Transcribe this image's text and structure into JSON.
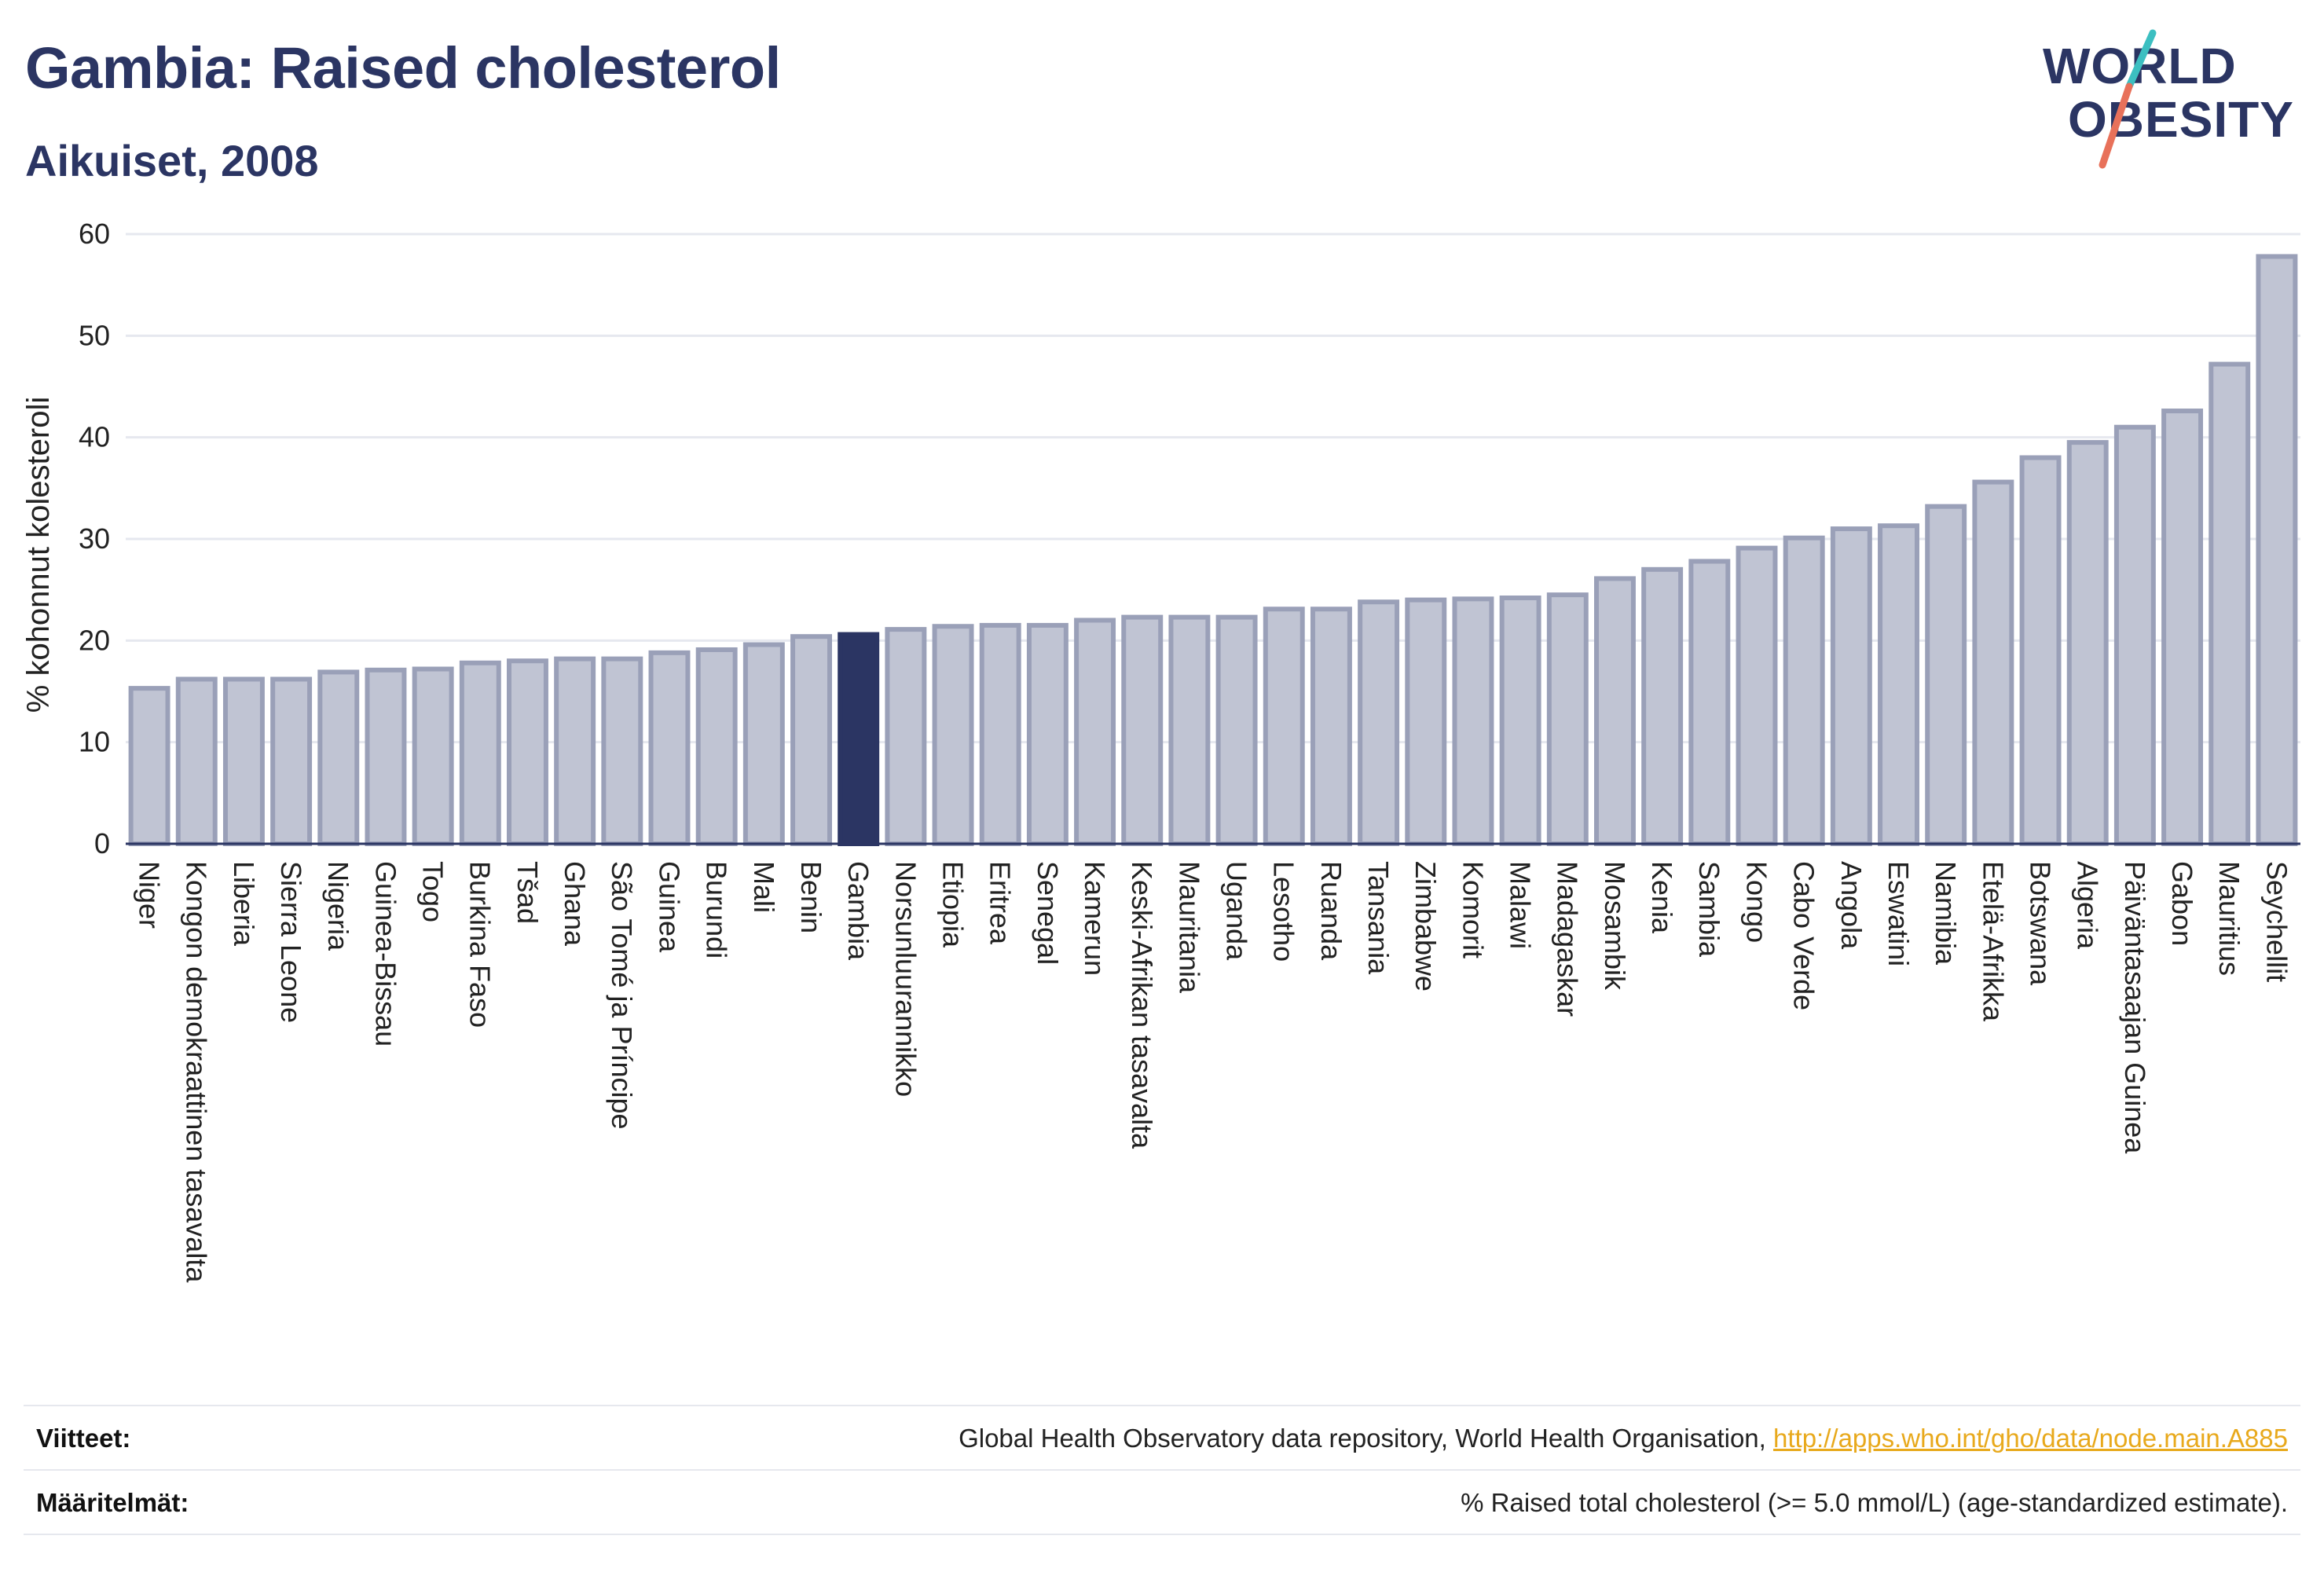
{
  "header": {
    "title": "Gambia: Raised cholesterol",
    "subtitle": "Aikuiset, 2008"
  },
  "logo": {
    "line1": "WORLD",
    "line2": "OBESITY",
    "slash_colors": [
      "#3cbfc1",
      "#e8715a"
    ]
  },
  "colors": {
    "bar_fill": "#c0c4d3",
    "bar_stroke": "#9aa0b8",
    "highlight": "#2b3563",
    "grid": "#e6e8ef",
    "axis_text": "#222222",
    "link": "#e8a91c"
  },
  "chart_data": {
    "type": "bar",
    "ylabel": "% kohonnut kolesteroli",
    "ylim": [
      0,
      60
    ],
    "yticks": [
      0,
      10,
      20,
      30,
      40,
      50,
      60
    ],
    "highlight": "Gambia",
    "grid": true,
    "categories": [
      "Niger",
      "Kongon demokraattinen tasavalta",
      "Liberia",
      "Sierra Leone",
      "Nigeria",
      "Guinea-Bissau",
      "Togo",
      "Burkina Faso",
      "Tšad",
      "Ghana",
      "São Tomé ja Príncipe",
      "Guinea",
      "Burundi",
      "Mali",
      "Benin",
      "Gambia",
      "Norsunluurannikko",
      "Etiopia",
      "Eritrea",
      "Senegal",
      "Kamerun",
      "Keski-Afrikan tasavalta",
      "Mauritania",
      "Uganda",
      "Lesotho",
      "Ruanda",
      "Tansania",
      "Zimbabwe",
      "Komorit",
      "Malawi",
      "Madagaskar",
      "Mosambik",
      "Kenia",
      "Sambia",
      "Kongo",
      "Cabo Verde",
      "Angola",
      "Eswatini",
      "Namibia",
      "Etelä-Afrikka",
      "Botswana",
      "Algeria",
      "Päiväntasaajan Guinea",
      "Gabon",
      "Mauritius",
      "Seychellit"
    ],
    "values": [
      15.3,
      16.2,
      16.2,
      16.2,
      16.9,
      17.1,
      17.2,
      17.8,
      18.0,
      18.2,
      18.2,
      18.8,
      19.1,
      19.6,
      20.4,
      20.6,
      21.1,
      21.4,
      21.5,
      21.5,
      22.0,
      22.3,
      22.3,
      22.3,
      23.1,
      23.1,
      23.8,
      24.0,
      24.1,
      24.2,
      24.5,
      26.1,
      27.0,
      27.8,
      29.1,
      30.1,
      31.0,
      31.3,
      33.2,
      35.6,
      38.0,
      39.5,
      41.0,
      42.6,
      47.2,
      57.8
    ]
  },
  "footer": {
    "sources_label": "Viitteet:",
    "sources_text": "Global Health Observatory data repository, World Health Organisation, ",
    "sources_link": "http://apps.who.int/gho/data/node.main.A885",
    "definitions_label": "Määritelmät:",
    "definitions_text": "% Raised total cholesterol (>= 5.0 mmol/L) (age-standardized estimate)."
  }
}
